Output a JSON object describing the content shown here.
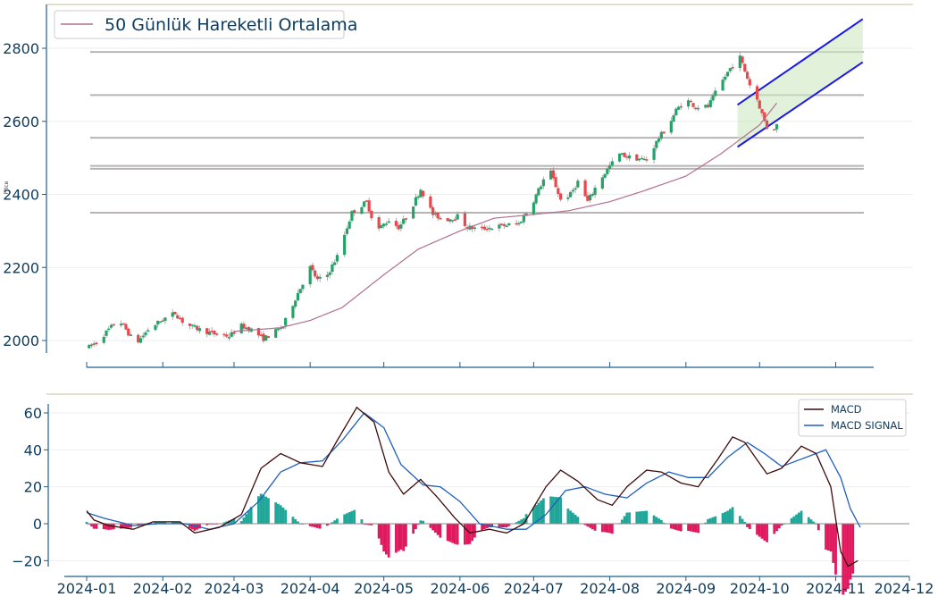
{
  "chart_data": [
    {
      "type": "candlestick",
      "ylabel": "Price",
      "ylim": [
        1965,
        2880
      ],
      "y_ticks": [
        "2000",
        "2200",
        "2400",
        "2600",
        "2800"
      ],
      "legend": {
        "position": "top-left",
        "entries": [
          "50 Günlük Hareketli Ortalama"
        ]
      },
      "colors": {
        "up": "#26a269",
        "down": "#e8474c",
        "sma": "#b07090",
        "channel": "#1a1ae6",
        "level": "#b8b4b4"
      },
      "horizontal_levels": [
        2790,
        2672,
        2555,
        2478,
        2470,
        2350
      ],
      "trend_channel": {
        "upper": [
          [
            "2024-09-22",
            2645
          ],
          [
            "2024-11-12",
            2880
          ]
        ],
        "lower": [
          [
            "2024-09-22",
            2530
          ],
          [
            "2024-11-12",
            2762
          ]
        ]
      },
      "price_anchors": [
        [
          "2024-01-02",
          1982
        ],
        [
          "2024-01-05",
          1996
        ],
        [
          "2024-01-10",
          2030
        ],
        [
          "2024-01-14",
          2058
        ],
        [
          "2024-01-17",
          2030
        ],
        [
          "2024-01-21",
          1990
        ],
        [
          "2024-01-26",
          2030
        ],
        [
          "2024-02-01",
          2058
        ],
        [
          "2024-02-06",
          2075
        ],
        [
          "2024-02-10",
          2045
        ],
        [
          "2024-02-16",
          2030
        ],
        [
          "2024-02-22",
          2018
        ],
        [
          "2024-02-28",
          2012
        ],
        [
          "2024-03-04",
          2040
        ],
        [
          "2024-03-08",
          2030
        ],
        [
          "2024-03-13",
          2005
        ],
        [
          "2024-03-17",
          2020
        ],
        [
          "2024-03-21",
          2040
        ],
        [
          "2024-03-27",
          2130
        ],
        [
          "2024-04-01",
          2200
        ],
        [
          "2024-04-04",
          2165
        ],
        [
          "2024-04-08",
          2180
        ],
        [
          "2024-04-12",
          2230
        ],
        [
          "2024-04-18",
          2350
        ],
        [
          "2024-04-24",
          2380
        ],
        [
          "2024-04-28",
          2300
        ],
        [
          "2024-05-03",
          2330
        ],
        [
          "2024-05-07",
          2310
        ],
        [
          "2024-05-11",
          2345
        ],
        [
          "2024-05-16",
          2415
        ],
        [
          "2024-05-21",
          2345
        ],
        [
          "2024-05-26",
          2330
        ],
        [
          "2024-05-31",
          2340
        ],
        [
          "2024-06-04",
          2310
        ],
        [
          "2024-06-09",
          2305
        ],
        [
          "2024-06-14",
          2310
        ],
        [
          "2024-06-19",
          2315
        ],
        [
          "2024-06-25",
          2320
        ],
        [
          "2024-06-30",
          2370
        ],
        [
          "2024-07-05",
          2440
        ],
        [
          "2024-07-08",
          2460
        ],
        [
          "2024-07-12",
          2385
        ],
        [
          "2024-07-16",
          2400
        ],
        [
          "2024-07-19",
          2435
        ],
        [
          "2024-07-23",
          2380
        ],
        [
          "2024-07-27",
          2430
        ],
        [
          "2024-08-01",
          2478
        ],
        [
          "2024-08-05",
          2510
        ],
        [
          "2024-08-10",
          2500
        ],
        [
          "2024-08-16",
          2495
        ],
        [
          "2024-08-21",
          2555
        ],
        [
          "2024-08-25",
          2590
        ],
        [
          "2024-08-28",
          2630
        ],
        [
          "2024-09-01",
          2660
        ],
        [
          "2024-09-05",
          2640
        ],
        [
          "2024-09-10",
          2640
        ],
        [
          "2024-09-14",
          2690
        ],
        [
          "2024-09-19",
          2745
        ],
        [
          "2024-09-23",
          2775
        ],
        [
          "2024-09-27",
          2700
        ],
        [
          "2024-09-30",
          2660
        ],
        [
          "2024-10-03",
          2600
        ],
        [
          "2024-10-05",
          2565
        ],
        [
          "2024-10-08",
          2590
        ]
      ],
      "sma_anchors": [
        [
          "2024-03-01",
          2025
        ],
        [
          "2024-03-20",
          2035
        ],
        [
          "2024-04-01",
          2055
        ],
        [
          "2024-04-14",
          2090
        ],
        [
          "2024-05-01",
          2180
        ],
        [
          "2024-05-15",
          2250
        ],
        [
          "2024-06-01",
          2300
        ],
        [
          "2024-06-15",
          2335
        ],
        [
          "2024-07-01",
          2345
        ],
        [
          "2024-07-15",
          2355
        ],
        [
          "2024-08-01",
          2380
        ],
        [
          "2024-08-15",
          2410
        ],
        [
          "2024-09-01",
          2450
        ],
        [
          "2024-09-15",
          2510
        ],
        [
          "2024-10-01",
          2590
        ],
        [
          "2024-10-08",
          2650
        ]
      ]
    },
    {
      "type": "line+bar",
      "ylim": [
        -25,
        66
      ],
      "y_ticks": [
        "60",
        "40",
        "20",
        "0",
        "−20"
      ],
      "x_ticks": [
        "2024-01",
        "2024-02",
        "2024-03",
        "2024-04",
        "2024-05",
        "2024-06",
        "2024-07",
        "2024-08",
        "2024-09",
        "2024-10",
        "2024-11",
        "2024-12"
      ],
      "legend": {
        "position": "top-right",
        "entries": [
          "MACD",
          "MACD SIGNAL"
        ]
      },
      "colors": {
        "macd": "#3d0a0a",
        "signal": "#1f5fbf",
        "hist_pos": "#1fa698",
        "hist_neg": "#e0195e"
      },
      "macd_anchors": [
        [
          "2024-01-01",
          7
        ],
        [
          "2024-01-04",
          2
        ],
        [
          "2024-01-10",
          -1
        ],
        [
          "2024-01-20",
          -3
        ],
        [
          "2024-01-28",
          1
        ],
        [
          "2024-02-08",
          1
        ],
        [
          "2024-02-14",
          -5
        ],
        [
          "2024-02-24",
          -2
        ],
        [
          "2024-03-04",
          5
        ],
        [
          "2024-03-12",
          30
        ],
        [
          "2024-03-20",
          38
        ],
        [
          "2024-03-28",
          33
        ],
        [
          "2024-04-06",
          31
        ],
        [
          "2024-04-12",
          45
        ],
        [
          "2024-04-20",
          63
        ],
        [
          "2024-04-27",
          55
        ],
        [
          "2024-05-03",
          28
        ],
        [
          "2024-05-09",
          16
        ],
        [
          "2024-05-16",
          24
        ],
        [
          "2024-05-23",
          14
        ],
        [
          "2024-05-30",
          3
        ],
        [
          "2024-06-05",
          -5
        ],
        [
          "2024-06-13",
          -3
        ],
        [
          "2024-06-20",
          -5
        ],
        [
          "2024-06-27",
          0
        ],
        [
          "2024-07-06",
          20
        ],
        [
          "2024-07-12",
          29
        ],
        [
          "2024-07-19",
          23
        ],
        [
          "2024-07-27",
          13
        ],
        [
          "2024-08-02",
          10
        ],
        [
          "2024-08-08",
          20
        ],
        [
          "2024-08-16",
          29
        ],
        [
          "2024-08-22",
          28
        ],
        [
          "2024-08-30",
          22
        ],
        [
          "2024-09-06",
          20
        ],
        [
          "2024-09-14",
          35
        ],
        [
          "2024-09-20",
          47
        ],
        [
          "2024-09-25",
          44
        ],
        [
          "2024-10-04",
          27
        ],
        [
          "2024-10-10",
          30
        ],
        [
          "2024-10-18",
          42
        ],
        [
          "2024-10-24",
          38
        ],
        [
          "2024-10-30",
          20
        ],
        [
          "2024-11-03",
          -15
        ],
        [
          "2024-11-06",
          -23
        ],
        [
          "2024-11-10",
          -20
        ]
      ],
      "signal_anchors": [
        [
          "2024-01-01",
          6
        ],
        [
          "2024-01-08",
          3
        ],
        [
          "2024-01-20",
          -1
        ],
        [
          "2024-01-30",
          0
        ],
        [
          "2024-02-10",
          0
        ],
        [
          "2024-02-20",
          -3
        ],
        [
          "2024-03-01",
          0
        ],
        [
          "2024-03-11",
          12
        ],
        [
          "2024-03-20",
          28
        ],
        [
          "2024-03-28",
          33
        ],
        [
          "2024-04-06",
          34
        ],
        [
          "2024-04-14",
          45
        ],
        [
          "2024-04-23",
          60
        ],
        [
          "2024-05-01",
          52
        ],
        [
          "2024-05-08",
          32
        ],
        [
          "2024-05-17",
          21
        ],
        [
          "2024-05-24",
          20
        ],
        [
          "2024-06-01",
          12
        ],
        [
          "2024-06-09",
          0
        ],
        [
          "2024-06-20",
          -3
        ],
        [
          "2024-06-28",
          -3
        ],
        [
          "2024-07-06",
          5
        ],
        [
          "2024-07-14",
          18
        ],
        [
          "2024-07-22",
          20
        ],
        [
          "2024-07-30",
          16
        ],
        [
          "2024-08-08",
          14
        ],
        [
          "2024-08-16",
          22
        ],
        [
          "2024-08-25",
          28
        ],
        [
          "2024-09-02",
          25
        ],
        [
          "2024-09-10",
          25
        ],
        [
          "2024-09-18",
          36
        ],
        [
          "2024-09-26",
          44
        ],
        [
          "2024-10-03",
          38
        ],
        [
          "2024-10-10",
          31
        ],
        [
          "2024-10-20",
          36
        ],
        [
          "2024-10-28",
          40
        ],
        [
          "2024-11-03",
          25
        ],
        [
          "2024-11-07",
          8
        ],
        [
          "2024-11-11",
          -2
        ]
      ]
    }
  ]
}
